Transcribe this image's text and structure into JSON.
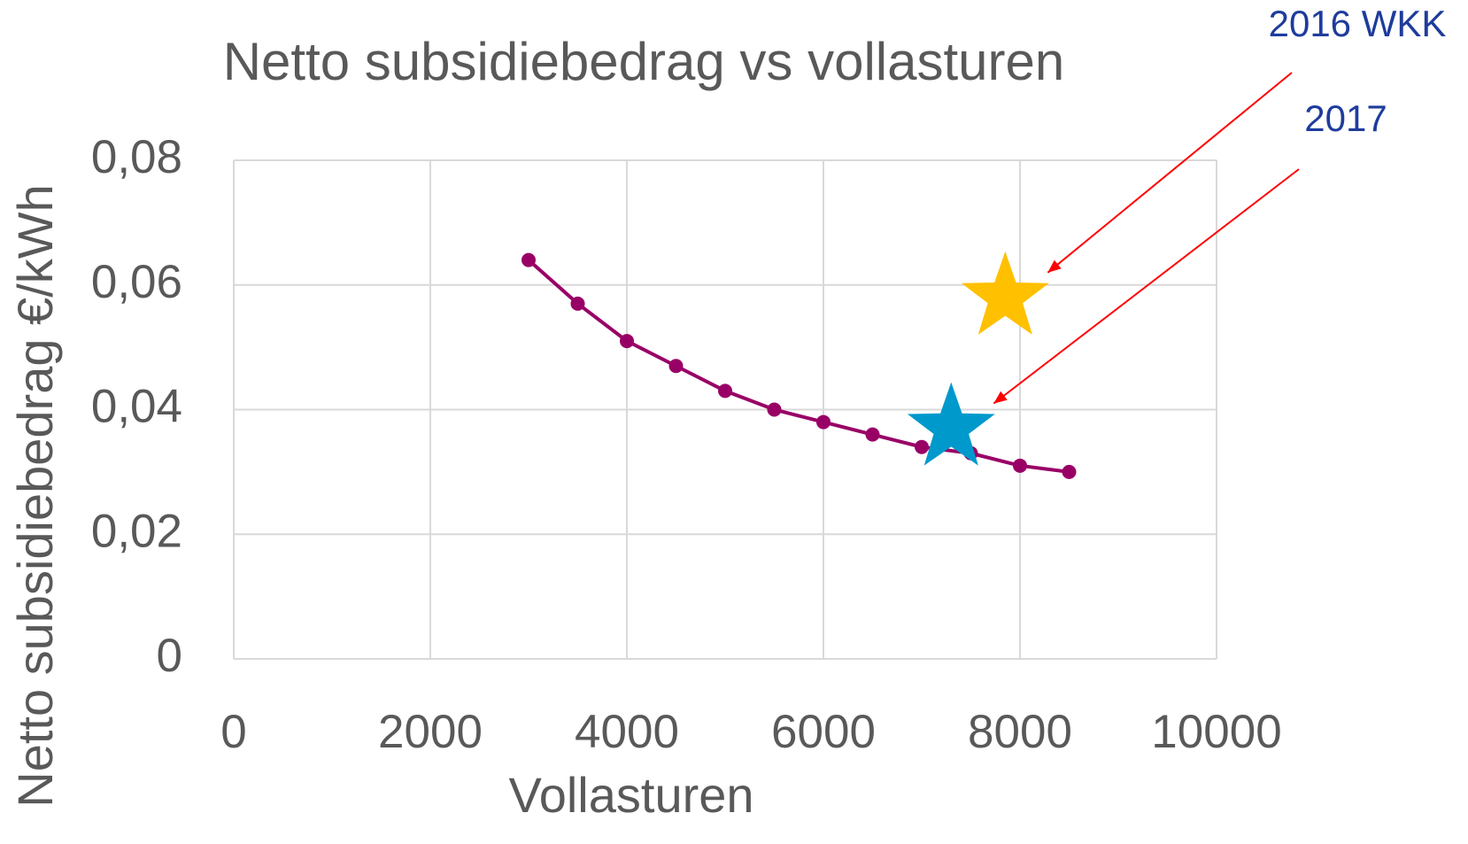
{
  "chart_data": {
    "type": "line",
    "title": "Netto subsidiebedrag vs vollasturen",
    "x_label": "Vollasturen",
    "y_label": "Netto subsidiebedrag €/kWh",
    "x": [
      3000,
      3500,
      4000,
      4500,
      5000,
      5500,
      6000,
      6500,
      7000,
      7500,
      8000,
      8500
    ],
    "series": [
      {
        "color": "#990066",
        "values": [
          0.064,
          0.057,
          0.051,
          0.047,
          0.043,
          0.04,
          0.038,
          0.036,
          0.034,
          0.033,
          0.031,
          0.03
        ]
      }
    ],
    "xlim": [
      0,
      10000
    ],
    "xticks": [
      0,
      2000,
      4000,
      6000,
      8000,
      10000
    ],
    "ylim": [
      0,
      0.08
    ],
    "yticks": [
      0,
      {
        "value": 0.02,
        "label": "0,02"
      },
      {
        "value": 0.04,
        "label": "0,04"
      },
      {
        "value": 0.06,
        "label": "0,06"
      },
      {
        "value": 0.08,
        "label": "0,08"
      }
    ],
    "grid": true,
    "annotations": [
      {
        "text": "2016 WKK",
        "x": 7850,
        "y": 0.058,
        "color": "#ffc000"
      },
      {
        "text": "2017",
        "x": 7300,
        "y": 0.037,
        "color": "#0099cc"
      }
    ]
  }
}
